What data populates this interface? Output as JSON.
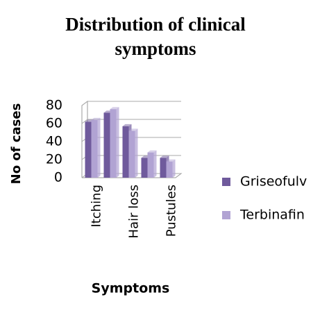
{
  "chart_data": {
    "type": "bar",
    "title": [
      "Distribution of clinical",
      "symptoms"
    ],
    "x_label": "Symptoms",
    "y_label": "No of cases",
    "categories": [
      "Itching",
      null,
      "Hair loss",
      null,
      "Pustules"
    ],
    "series": [
      {
        "name": "Griseofulv",
        "color": "#6f5a9c",
        "values": [
          62,
          72,
          57,
          22,
          22
        ]
      },
      {
        "name": "Terbinafin",
        "color": "#b1a3d3",
        "values": [
          64,
          76,
          52,
          28,
          18
        ]
      }
    ],
    "ylim": [
      0,
      80
    ],
    "yticks": [
      0,
      20,
      40,
      60,
      80
    ],
    "grid": true,
    "legend": "right"
  }
}
